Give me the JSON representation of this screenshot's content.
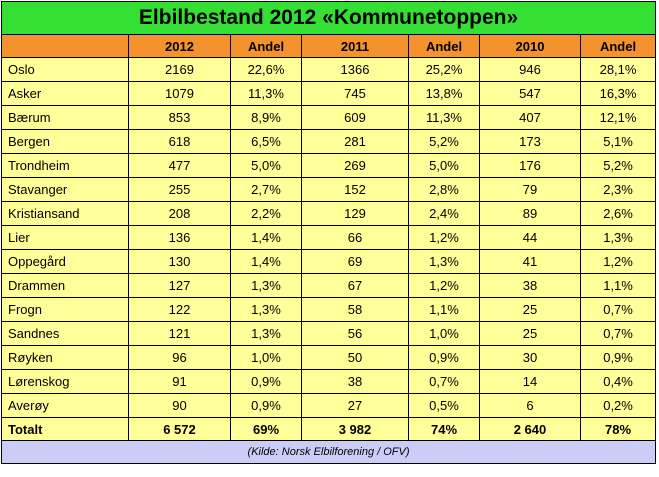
{
  "title": "Elbilbestand 2012 «Kommunetoppen»",
  "source": "(Kilde: Norsk Elbilforening / OFV)",
  "chart_data": {
    "type": "table",
    "title": "Elbilbestand 2012 «Kommunetoppen»",
    "columns": [
      "",
      "2012",
      "Andel",
      "2011",
      "Andel",
      "2010",
      "Andel"
    ],
    "rows": [
      [
        "Oslo",
        "2169",
        "22,6%",
        "1366",
        "25,2%",
        "946",
        "28,1%"
      ],
      [
        "Asker",
        "1079",
        "11,3%",
        "745",
        "13,8%",
        "547",
        "16,3%"
      ],
      [
        "Bærum",
        "853",
        "8,9%",
        "609",
        "11,3%",
        "407",
        "12,1%"
      ],
      [
        "Bergen",
        "618",
        "6,5%",
        "281",
        "5,2%",
        "173",
        "5,1%"
      ],
      [
        "Trondheim",
        "477",
        "5,0%",
        "269",
        "5,0%",
        "176",
        "5,2%"
      ],
      [
        "Stavanger",
        "255",
        "2,7%",
        "152",
        "2,8%",
        "79",
        "2,3%"
      ],
      [
        "Kristiansand",
        "208",
        "2,2%",
        "129",
        "2,4%",
        "89",
        "2,6%"
      ],
      [
        "Lier",
        "136",
        "1,4%",
        "66",
        "1,2%",
        "44",
        "1,3%"
      ],
      [
        "Oppegård",
        "130",
        "1,4%",
        "69",
        "1,3%",
        "41",
        "1,2%"
      ],
      [
        "Drammen",
        "127",
        "1,3%",
        "67",
        "1,2%",
        "38",
        "1,1%"
      ],
      [
        "Frogn",
        "122",
        "1,3%",
        "58",
        "1,1%",
        "25",
        "0,7%"
      ],
      [
        "Sandnes",
        "121",
        "1,3%",
        "56",
        "1,0%",
        "25",
        "0,7%"
      ],
      [
        "Røyken",
        "96",
        "1,0%",
        "50",
        "0,9%",
        "30",
        "0,9%"
      ],
      [
        "Lørenskog",
        "91",
        "0,9%",
        "38",
        "0,7%",
        "14",
        "0,4%"
      ],
      [
        "Averøy",
        "90",
        "0,9%",
        "27",
        "0,5%",
        "6",
        "0,2%"
      ]
    ],
    "total": [
      "Totalt",
      "6 572",
      "69%",
      "3 982",
      "74%",
      "2 640",
      "78%"
    ]
  },
  "colors": {
    "title_bg": "#33e033",
    "header_bg": "#f4932d",
    "body_bg": "#ffff99",
    "source_bg": "#cccdf7"
  }
}
